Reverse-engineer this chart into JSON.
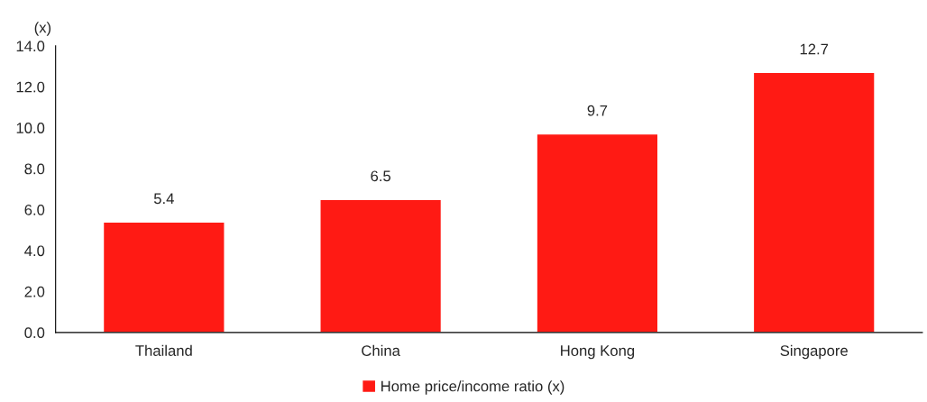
{
  "chart_data": {
    "type": "bar",
    "ylabel": "(x)",
    "categories": [
      "Thailand",
      "China",
      "Hong Kong",
      "Singapore"
    ],
    "series": [
      {
        "name": "Home price/income ratio (x)",
        "color": "#ff1a14",
        "values": [
          5.4,
          6.5,
          9.7,
          12.7
        ]
      }
    ],
    "ylim": [
      0,
      14
    ],
    "yticks": [
      {
        "value": 0,
        "label": "0.0"
      },
      {
        "value": 2,
        "label": "2.0"
      },
      {
        "value": 4,
        "label": "4.0"
      },
      {
        "value": 6,
        "label": "6.0"
      },
      {
        "value": 8,
        "label": "8.0"
      },
      {
        "value": 10,
        "label": "10.0"
      },
      {
        "value": 12,
        "label": "12.0"
      },
      {
        "value": 14,
        "label": "14.0"
      }
    ],
    "data_labels": true,
    "grid": false,
    "legend": "bottom"
  }
}
